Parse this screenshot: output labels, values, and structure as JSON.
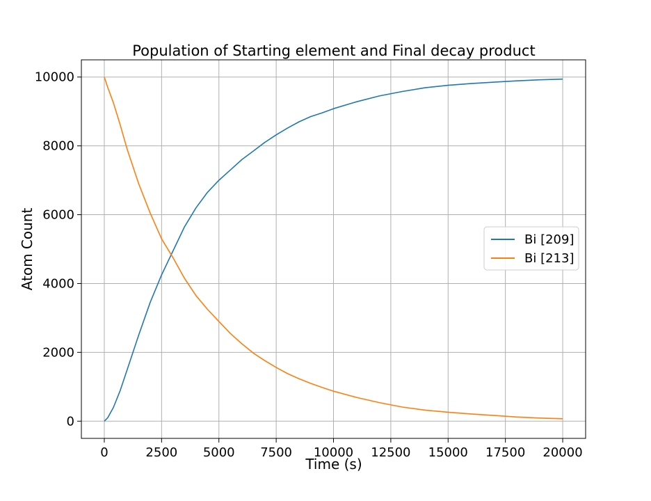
{
  "chart_data": {
    "type": "line",
    "title": "Population of Starting element and Final decay product",
    "xlabel": "Time (s)",
    "ylabel": "Atom Count",
    "xlim": [
      -1000,
      21000
    ],
    "ylim": [
      -500,
      10500
    ],
    "xticks": [
      0,
      2500,
      5000,
      7500,
      10000,
      12500,
      15000,
      17500,
      20000
    ],
    "xtick_labels": [
      "0",
      "2500",
      "5000",
      "7500",
      "10000",
      "12500",
      "15000",
      "17500",
      "20000"
    ],
    "yticks": [
      0,
      2000,
      4000,
      6000,
      8000,
      10000
    ],
    "ytick_labels": [
      "0",
      "2000",
      "4000",
      "6000",
      "8000",
      "10000"
    ],
    "grid": true,
    "legend_position": "center-right",
    "series": [
      {
        "name": "Bi [209]",
        "color": "#1f77b4",
        "x": [
          0,
          150,
          400,
          700,
          1000,
          1500,
          2000,
          2500,
          3000,
          3500,
          4000,
          4500,
          5000,
          5500,
          6000,
          6500,
          7000,
          7500,
          8000,
          8500,
          9000,
          9500,
          10000,
          11000,
          12000,
          13000,
          14000,
          15000,
          16000,
          17000,
          18000,
          19000,
          20000
        ],
        "y": [
          0,
          100,
          400,
          900,
          1500,
          2500,
          3450,
          4250,
          4950,
          5650,
          6200,
          6650,
          7000,
          7300,
          7600,
          7850,
          8100,
          8320,
          8520,
          8700,
          8850,
          8960,
          9080,
          9280,
          9450,
          9580,
          9690,
          9760,
          9810,
          9850,
          9890,
          9920,
          9940
        ]
      },
      {
        "name": "Bi [213]",
        "color": "#ff7f0e",
        "x": [
          0,
          150,
          400,
          700,
          1000,
          1500,
          2000,
          2500,
          3000,
          3500,
          4000,
          4500,
          5000,
          5500,
          6000,
          6500,
          7000,
          7500,
          8000,
          8500,
          9000,
          9500,
          10000,
          11000,
          12000,
          13000,
          14000,
          15000,
          16000,
          17000,
          18000,
          19000,
          20000
        ],
        "y": [
          10000,
          9700,
          9250,
          8600,
          7900,
          6900,
          6050,
          5300,
          4750,
          4150,
          3650,
          3250,
          2900,
          2550,
          2250,
          1980,
          1760,
          1560,
          1380,
          1230,
          1100,
          980,
          870,
          690,
          540,
          410,
          320,
          260,
          210,
          165,
          120,
          90,
          70
        ]
      }
    ]
  }
}
